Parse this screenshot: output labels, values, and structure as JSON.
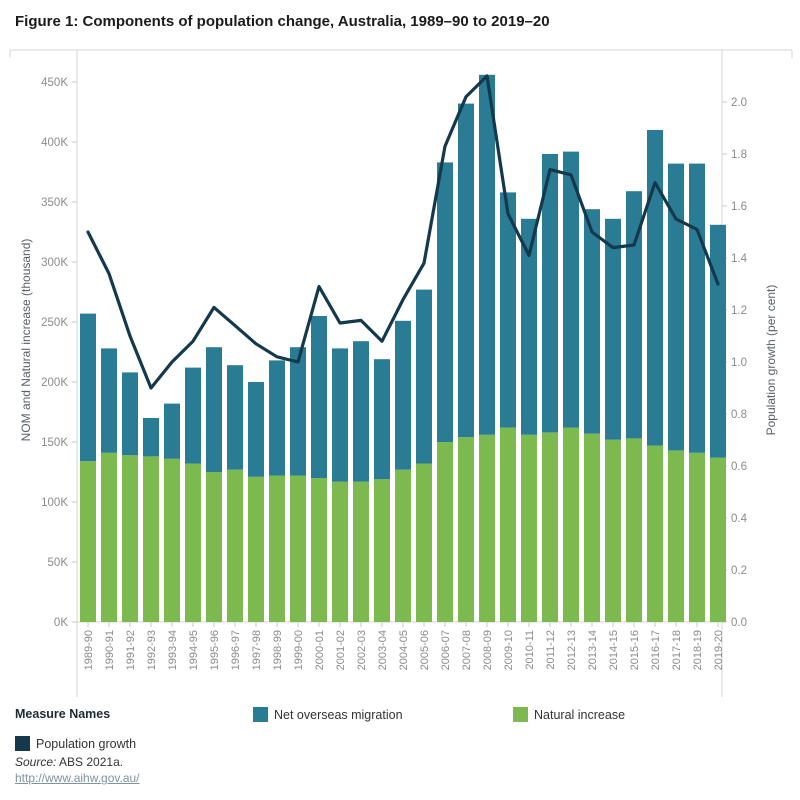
{
  "figure": {
    "title": "Figure 1: Components of population change, Australia, 1989–90 to 2019–20",
    "source_prefix": "Source:",
    "source_text": " ABS 2021a.",
    "link": "http://www.aihw.gov.au/"
  },
  "legend": {
    "title": "Measure Names",
    "items": [
      {
        "label": "Population growth",
        "color": "#14384C"
      },
      {
        "label": "Net overseas migration",
        "color": "#2A7B94"
      },
      {
        "label": "Natural increase",
        "color": "#7CBA50"
      }
    ]
  },
  "chart_data": {
    "type": "bar",
    "subtype": "stacked bars with dual-axis line overlay",
    "title": "Figure 1: Components of population change, Australia, 1989–90 to 2019–20",
    "categories": [
      "1989-90",
      "1990-91",
      "1991-92",
      "1992-93",
      "1993-94",
      "1994-95",
      "1995-96",
      "1996-97",
      "1997-98",
      "1998-99",
      "1999-00",
      "2000-01",
      "2001-02",
      "2002-03",
      "2003-04",
      "2004-05",
      "2005-06",
      "2006-07",
      "2007-08",
      "2008-09",
      "2009-10",
      "2010-11",
      "2011-12",
      "2012-13",
      "2013-14",
      "2014-15",
      "2015-16",
      "2016-17",
      "2017-18",
      "2018-19",
      "2019-20"
    ],
    "series": [
      {
        "name": "Natural increase",
        "type": "bar",
        "axis": "left",
        "unit": "thousand",
        "color": "#7CBA50",
        "values": [
          134,
          141,
          139,
          138,
          136,
          132,
          125,
          127,
          121,
          122,
          122,
          120,
          117,
          117,
          119,
          127,
          132,
          150,
          154,
          156,
          162,
          156,
          158,
          162,
          157,
          152,
          153,
          147,
          143,
          141,
          137
        ]
      },
      {
        "name": "Net overseas migration",
        "type": "bar",
        "axis": "left",
        "unit": "thousand",
        "color": "#2A7B94",
        "stacked_on": "Natural increase",
        "values": [
          123,
          87,
          69,
          32,
          46,
          80,
          104,
          87,
          79,
          96,
          107,
          135,
          111,
          117,
          100,
          124,
          145,
          233,
          278,
          300,
          196,
          180,
          232,
          230,
          187,
          184,
          206,
          263,
          239,
          241,
          194
        ]
      },
      {
        "name": "Population growth",
        "type": "line",
        "axis": "right",
        "unit": "per cent",
        "color": "#14384C",
        "values": [
          1.5,
          1.34,
          1.1,
          0.9,
          1.0,
          1.08,
          1.21,
          1.14,
          1.07,
          1.02,
          1.0,
          1.29,
          1.15,
          1.16,
          1.08,
          1.24,
          1.38,
          1.83,
          2.02,
          2.1,
          1.57,
          1.41,
          1.74,
          1.72,
          1.5,
          1.44,
          1.45,
          1.69,
          1.55,
          1.51,
          1.3
        ]
      }
    ],
    "left_axis": {
      "label": "NOM and Natural increase (thousand)",
      "min": 0,
      "max": 475,
      "tick_step": 50,
      "ticks": [
        "0K",
        "50K",
        "100K",
        "150K",
        "200K",
        "250K",
        "300K",
        "350K",
        "400K",
        "450K"
      ]
    },
    "right_axis": {
      "label": "Population growth (per cent)",
      "min": 0,
      "max": 2.2,
      "tick_step": 0.2,
      "ticks": [
        "0.0",
        "0.2",
        "0.4",
        "0.6",
        "0.8",
        "1.0",
        "1.2",
        "1.4",
        "1.6",
        "1.8",
        "2.0"
      ]
    },
    "grid": "none (tick marks only)",
    "legend_position": "bottom"
  },
  "colors": {
    "natural_increase": "#7CBA50",
    "net_overseas_migration": "#2A7B94",
    "population_growth_line": "#14384C",
    "panel_border": "#d4d4d4",
    "tick_mark": "#c9c9c9",
    "tick_label": "#8b8b8b",
    "axis_title": "#55606b",
    "title_text": "#1b1b1b"
  }
}
